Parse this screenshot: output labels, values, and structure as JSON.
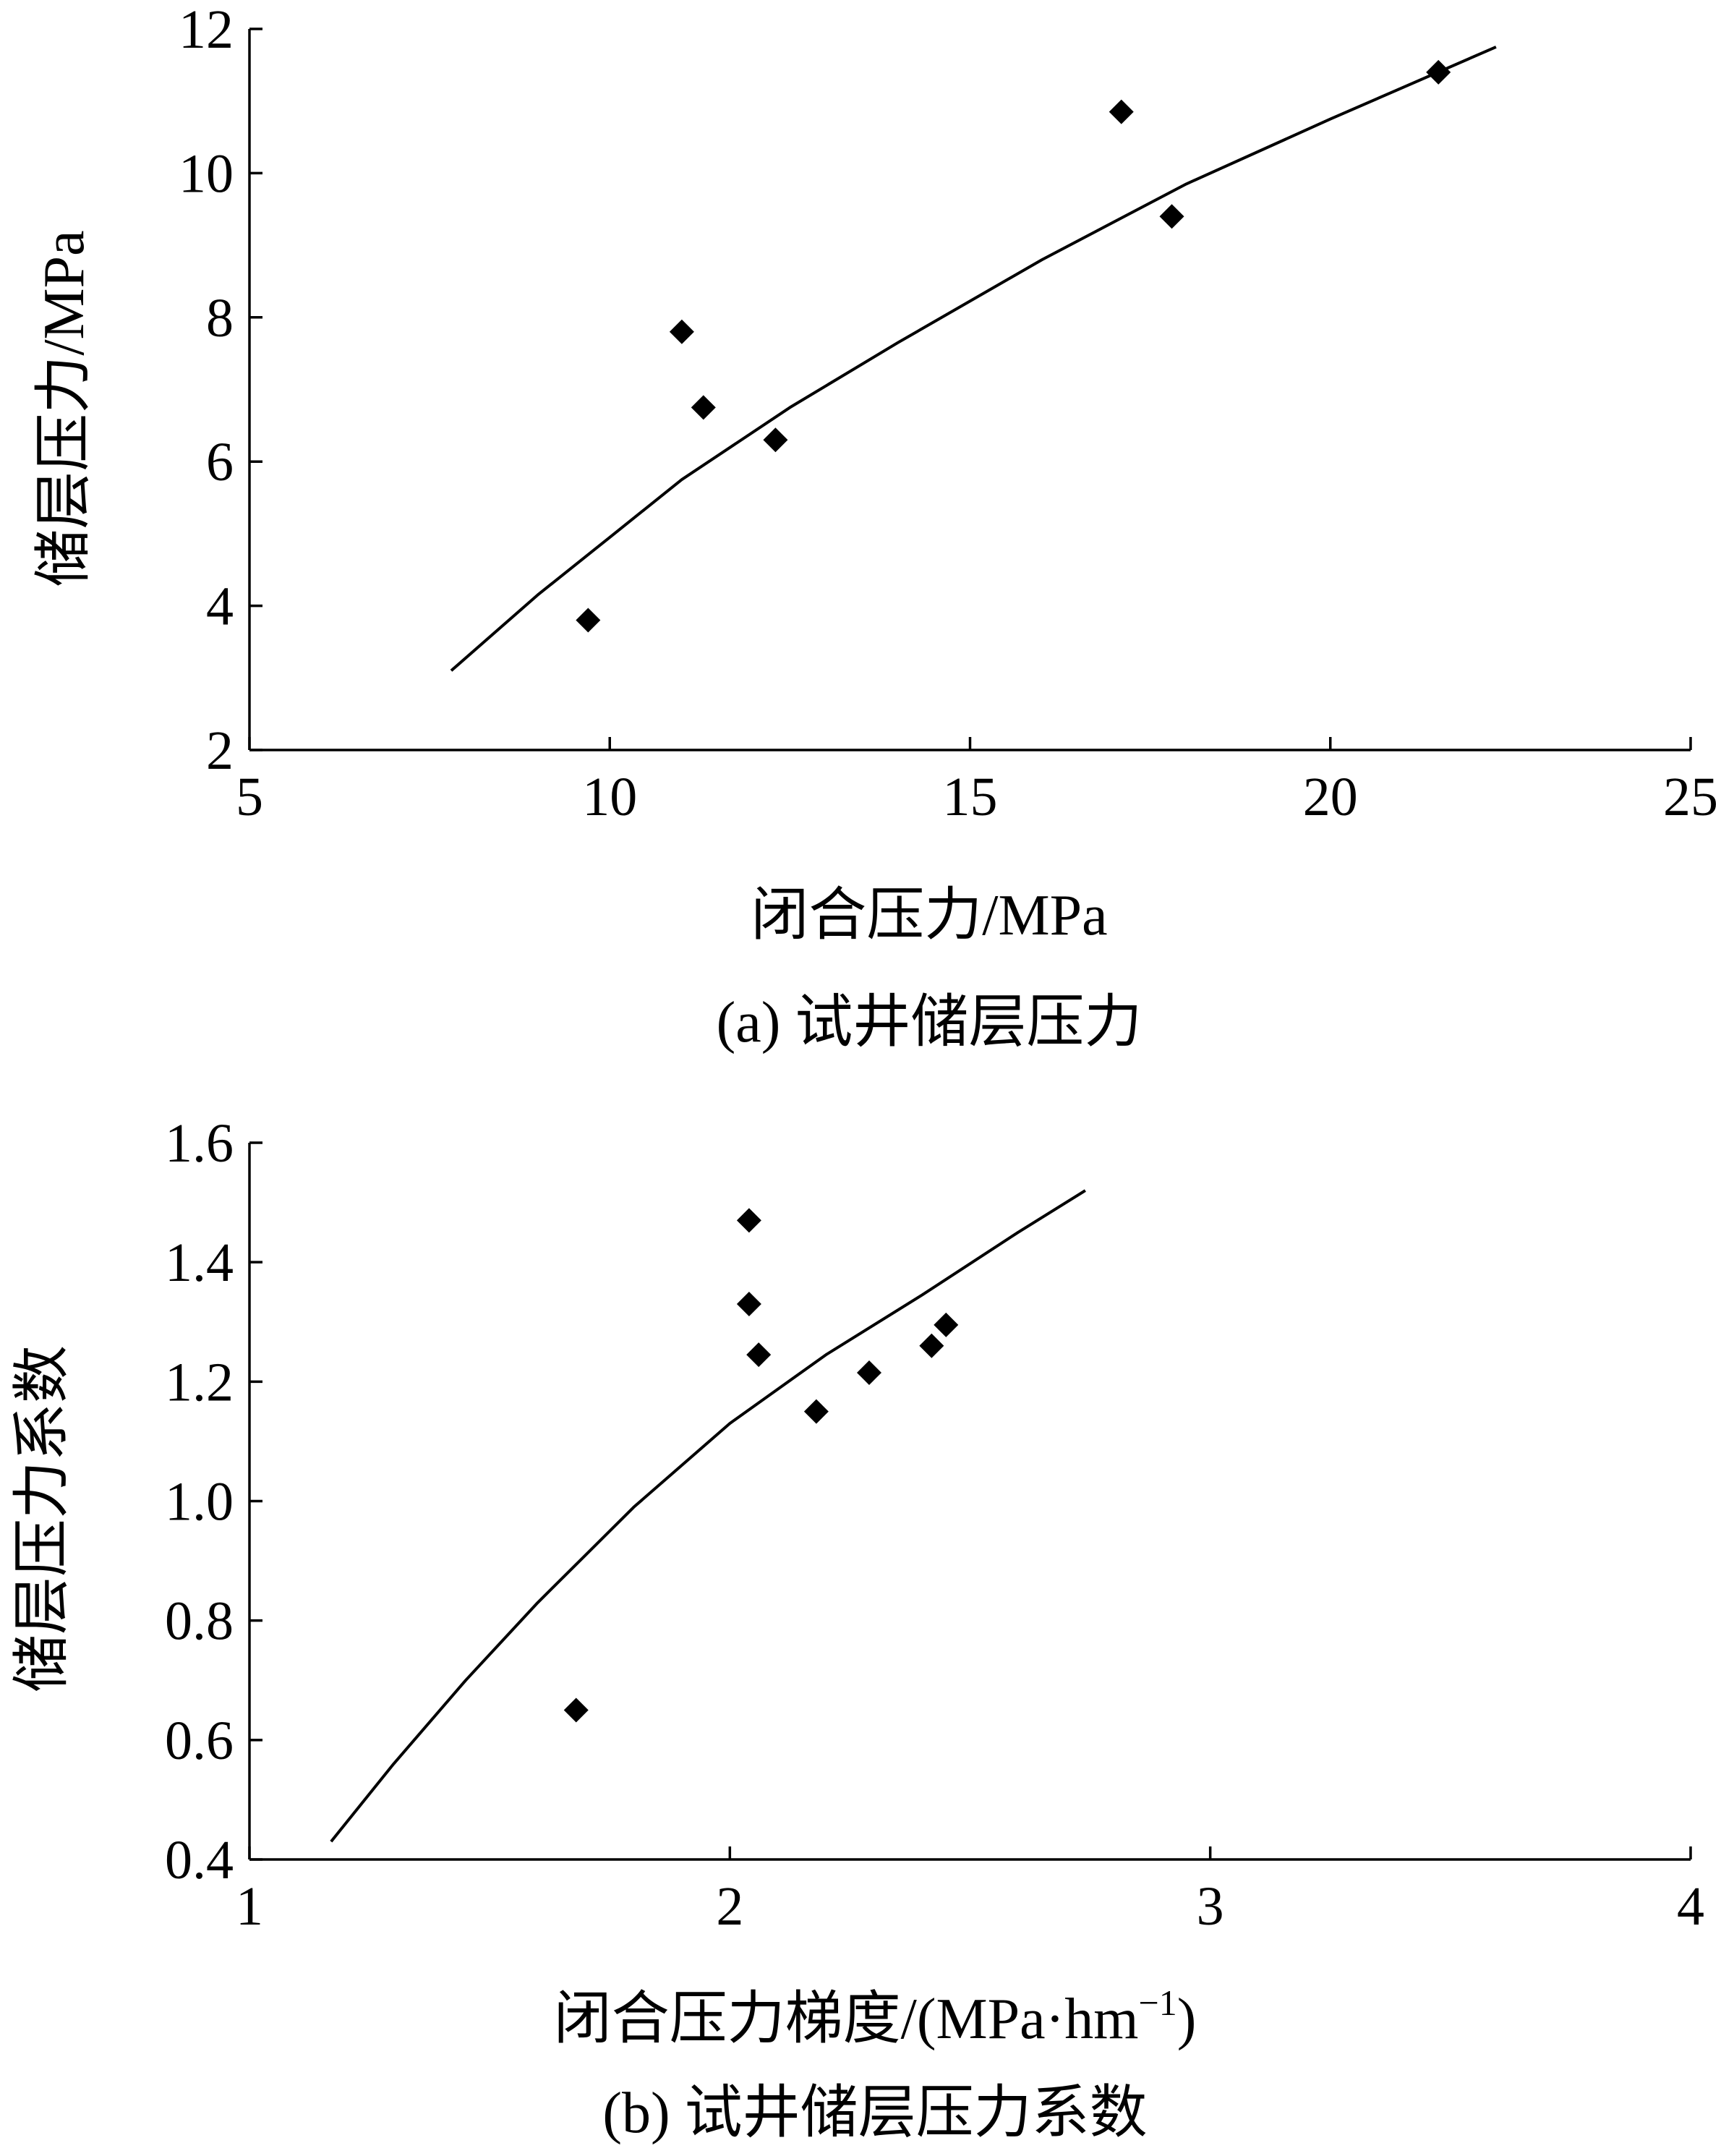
{
  "chart_data": [
    {
      "type": "scatter",
      "caption": "(a) 试井储层压力",
      "xlabel": "闭合压力/MPa",
      "ylabel": "储层压力/MPa",
      "xlim": [
        5,
        25
      ],
      "ylim": [
        2,
        12
      ],
      "xticks": [
        5,
        10,
        15,
        20,
        25
      ],
      "yticks": [
        2,
        4,
        6,
        8,
        10,
        12
      ],
      "grid": false,
      "points": [
        {
          "x": 9.7,
          "y": 3.8
        },
        {
          "x": 11.0,
          "y": 7.8
        },
        {
          "x": 11.3,
          "y": 6.75
        },
        {
          "x": 12.3,
          "y": 6.3
        },
        {
          "x": 17.1,
          "y": 10.85
        },
        {
          "x": 17.8,
          "y": 9.4
        },
        {
          "x": 21.5,
          "y": 11.4
        }
      ],
      "fit_curve": [
        {
          "x": 7.8,
          "y": 3.1
        },
        {
          "x": 9.0,
          "y": 4.15
        },
        {
          "x": 10.0,
          "y": 4.95
        },
        {
          "x": 11.0,
          "y": 5.75
        },
        {
          "x": 12.5,
          "y": 6.75
        },
        {
          "x": 14.0,
          "y": 7.65
        },
        {
          "x": 16.0,
          "y": 8.8
        },
        {
          "x": 18.0,
          "y": 9.85
        },
        {
          "x": 20.0,
          "y": 10.75
        },
        {
          "x": 22.3,
          "y": 11.75
        }
      ]
    },
    {
      "type": "scatter",
      "caption": "(b) 试井储层压力系数",
      "xlabel": "闭合压力梯度/(MPa·hm",
      "xlabel_sup": "−1",
      "xlabel_close": ")",
      "ylabel": "储层压力系数",
      "xlim": [
        1,
        4
      ],
      "ylim": [
        0.4,
        1.6
      ],
      "xticks": [
        1,
        2,
        3,
        4
      ],
      "yticks": [
        "0.4",
        "0.6",
        "0.8",
        "1.0",
        "1.2",
        "1.4",
        "1.6"
      ],
      "grid": false,
      "points": [
        {
          "x": 1.68,
          "y": 0.65
        },
        {
          "x": 2.04,
          "y": 1.47
        },
        {
          "x": 2.04,
          "y": 1.33
        },
        {
          "x": 2.06,
          "y": 1.245
        },
        {
          "x": 2.18,
          "y": 1.15
        },
        {
          "x": 2.29,
          "y": 1.215
        },
        {
          "x": 2.42,
          "y": 1.26
        },
        {
          "x": 2.45,
          "y": 1.295
        }
      ],
      "fit_curve": [
        {
          "x": 1.17,
          "y": 0.43
        },
        {
          "x": 1.3,
          "y": 0.56
        },
        {
          "x": 1.45,
          "y": 0.7
        },
        {
          "x": 1.6,
          "y": 0.83
        },
        {
          "x": 1.8,
          "y": 0.99
        },
        {
          "x": 2.0,
          "y": 1.13
        },
        {
          "x": 2.2,
          "y": 1.245
        },
        {
          "x": 2.4,
          "y": 1.345
        },
        {
          "x": 2.6,
          "y": 1.45
        },
        {
          "x": 2.74,
          "y": 1.52
        }
      ]
    }
  ]
}
